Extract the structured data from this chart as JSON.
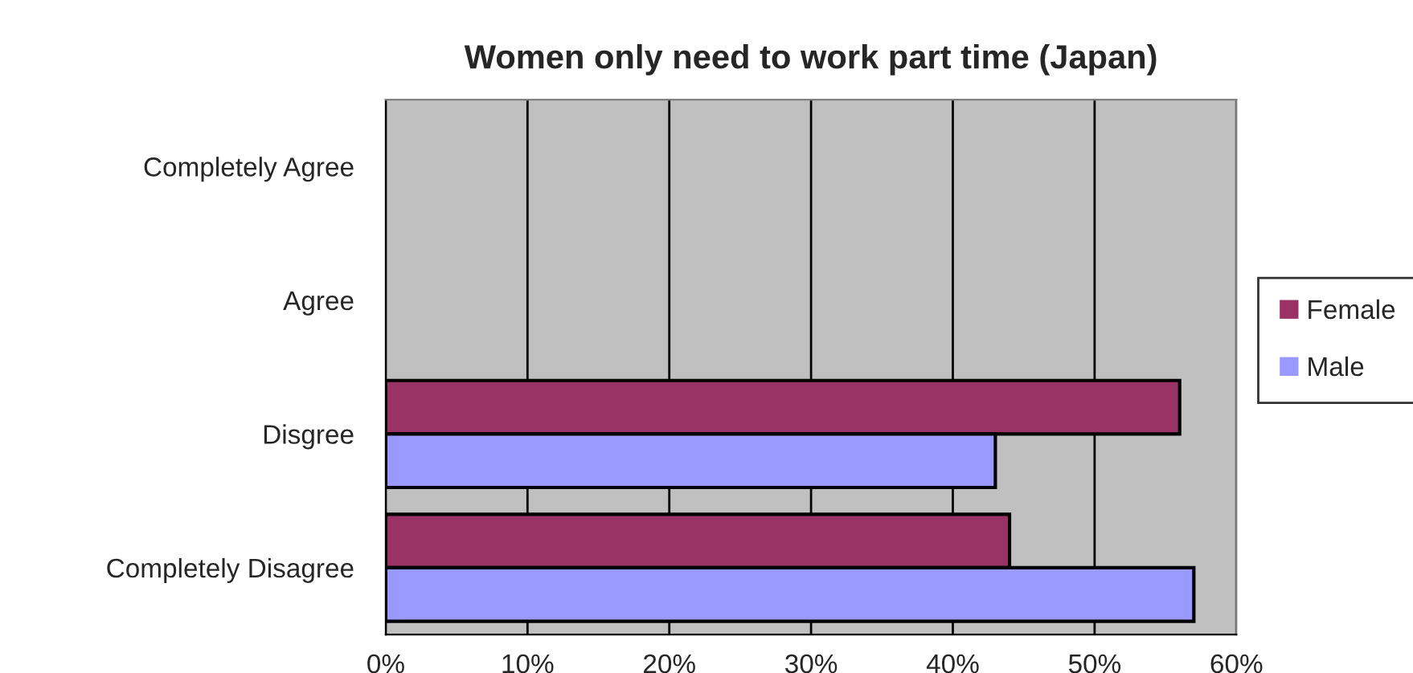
{
  "chart_data": {
    "type": "bar",
    "orientation": "horizontal",
    "title": "Women only need to work part time (Japan)",
    "categories": [
      "Completely Agree",
      "Agree",
      "Disgree",
      "Completely Disagree"
    ],
    "series": [
      {
        "name": "Female",
        "color": "#993366",
        "values": [
          0,
          0,
          56,
          44
        ]
      },
      {
        "name": "Male",
        "color": "#9999ff",
        "values": [
          0,
          0,
          43,
          57
        ]
      }
    ],
    "xlim": [
      0,
      60
    ],
    "xticks": [
      {
        "value": 0,
        "label": "0%"
      },
      {
        "value": 10,
        "label": "10%"
      },
      {
        "value": 20,
        "label": "20%"
      },
      {
        "value": 30,
        "label": "30%"
      },
      {
        "value": 40,
        "label": "40%"
      },
      {
        "value": 50,
        "label": "50%"
      },
      {
        "value": 60,
        "label": "60%"
      }
    ],
    "grid": "x",
    "legend": "right"
  }
}
